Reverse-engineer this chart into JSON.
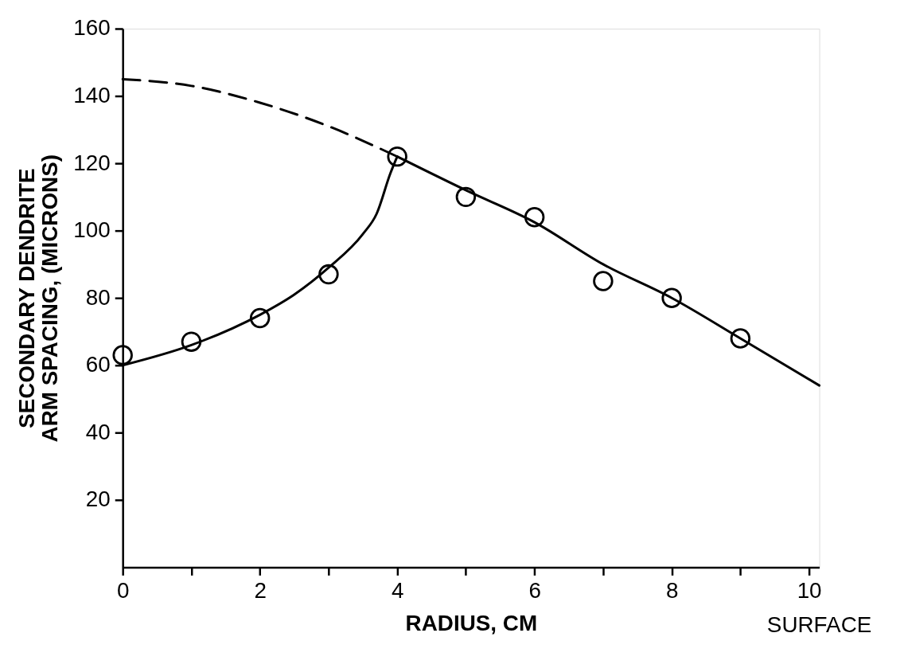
{
  "chart_data": {
    "type": "line",
    "xlabel": "RADIUS, CM",
    "ylabel": "SECONDARY DENDRITE\nARM SPACING, (MICRONS)",
    "annotations": [
      "SURFACE"
    ],
    "xlim": [
      0,
      10.15
    ],
    "ylim": [
      0,
      160
    ],
    "xticks": [
      0,
      {
        "value": 1,
        "label": null
      },
      2,
      {
        "value": 3,
        "label": null
      },
      4,
      {
        "value": 5,
        "label": null
      },
      6,
      {
        "value": 7,
        "label": null
      },
      8,
      {
        "value": 9,
        "label": null
      },
      10
    ],
    "yticks": [
      20,
      40,
      60,
      80,
      100,
      120,
      140,
      160
    ],
    "grid": false,
    "series": [
      {
        "line_style": "solid",
        "color": "#000000",
        "x": [
          0,
          1,
          2,
          2.5,
          3,
          3.5,
          3.7,
          3.9,
          4
        ],
        "values": [
          60,
          66,
          75,
          81,
          89,
          99,
          105,
          117,
          122
        ]
      },
      {
        "line_style": "dashed",
        "color": "#000000",
        "x": [
          0,
          1,
          2,
          3,
          4
        ],
        "values": [
          145,
          143,
          138,
          131,
          122
        ]
      },
      {
        "line_style": "solid",
        "color": "#000000",
        "x": [
          4,
          5,
          6,
          7,
          8,
          9,
          10.15
        ],
        "values": [
          122,
          112,
          102.5,
          90,
          80,
          68,
          54
        ]
      },
      {
        "type": "scatter",
        "marker": "circle",
        "color": "#000000",
        "x": [
          0,
          1,
          2,
          3,
          4,
          5,
          6,
          7,
          8,
          9
        ],
        "values": [
          63,
          67,
          74,
          87,
          122,
          110,
          104,
          85,
          80,
          68
        ]
      }
    ]
  }
}
